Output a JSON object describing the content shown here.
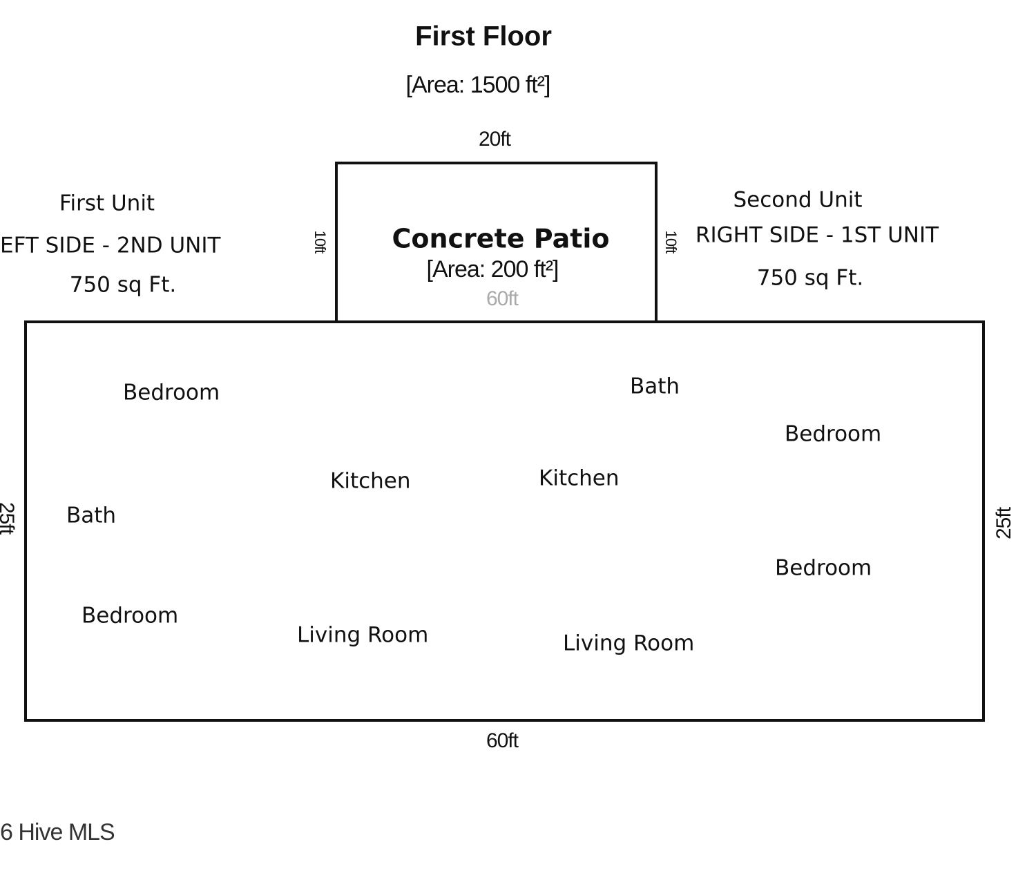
{
  "header": {
    "title": "First Floor",
    "area": "[Area: 1500 ft²]"
  },
  "patio": {
    "label": "Concrete Patio",
    "area": "[Area: 200 ft²]",
    "top_dimension": "20ft",
    "left_dimension": "10ft",
    "right_dimension": "10ft",
    "inner_dimension": "60ft"
  },
  "units": [
    {
      "name": "First Unit",
      "side": "EFT SIDE - 2ND UNIT",
      "size": "750 sq Ft."
    },
    {
      "name": "Second Unit",
      "side": "RIGHT SIDE - 1ST UNIT",
      "size": "750 sq Ft."
    }
  ],
  "rooms": [
    "Bedroom",
    "Bath",
    "Bedroom",
    "Kitchen",
    "Kitchen",
    "Bath",
    "Bedroom",
    "Bedroom",
    "Living Room",
    "Living Room"
  ],
  "dimensions": {
    "left": "25ft",
    "right": "25ft",
    "bottom": "60ft"
  },
  "watermark": "6 Hive MLS"
}
